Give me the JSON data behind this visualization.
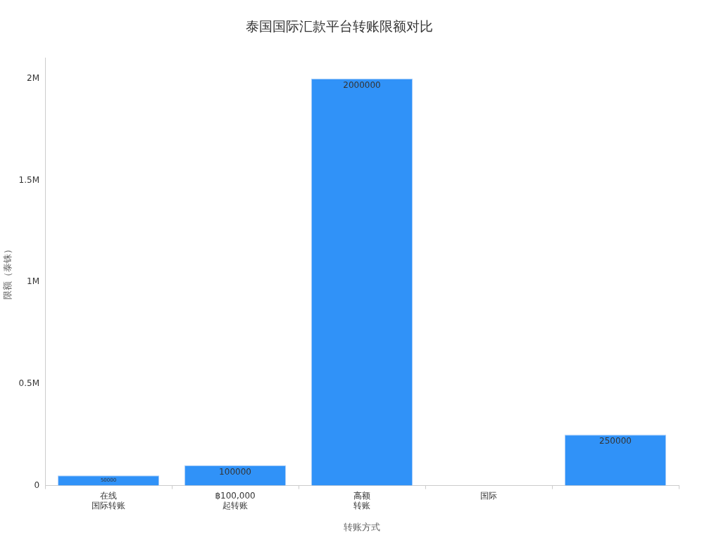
{
  "chart_data": {
    "type": "bar",
    "title": "泰国国际汇款平台转账限额对比",
    "xlabel": "转账方式",
    "ylabel": "限额（泰铢）",
    "categories": [
      "在线国际转账",
      "฿100,000\n起转账",
      "高额转账",
      "国际",
      null
    ],
    "values": [
      50000,
      100000,
      2000000,
      0,
      250000
    ],
    "value_labels": [
      "50000",
      "100000",
      "2000000",
      null,
      "250000"
    ],
    "color": "#3092f8",
    "ylim": [
      0,
      2100000
    ],
    "yticks": [
      0,
      {
        "value": 500000,
        "label": "0.5M"
      },
      {
        "value": 1000000,
        "label": "1M"
      },
      {
        "value": 1500000,
        "label": "1.5M"
      },
      {
        "value": 2000000,
        "label": "2M"
      }
    ],
    "grid": false
  }
}
